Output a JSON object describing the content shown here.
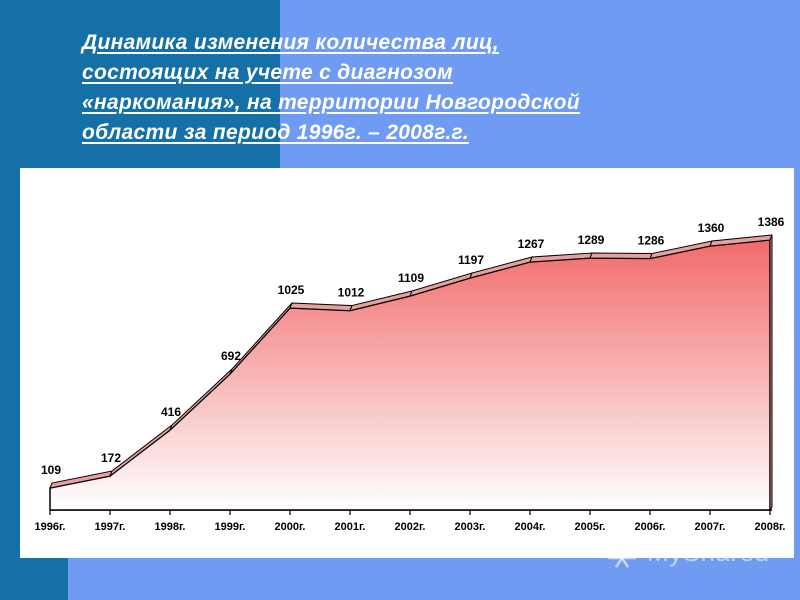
{
  "title_lines": [
    "Динамика изменения количества лиц,",
    "состоящих на учете с диагнозом",
    "«наркомания», на территории Новгородской",
    "области за период 1996г. – 2008г.г."
  ],
  "watermark": "MyShared",
  "colors": {
    "background": "#6f9cf2",
    "band": "#1470a6",
    "area_top": "#f26a6a",
    "area_bottom": "#ffffff",
    "ridge": "#e7a0a0"
  },
  "chart_data": {
    "type": "area",
    "categories": [
      "1996г.",
      "1997г.",
      "1998г.",
      "1999г.",
      "2000г.",
      "2001г.",
      "2002г.",
      "2003г.",
      "2004г.",
      "2005г.",
      "2006г.",
      "2007г.",
      "2008г."
    ],
    "values": [
      109,
      172,
      416,
      692,
      1025,
      1012,
      1109,
      1197,
      1267,
      1289,
      1286,
      1360,
      1386
    ],
    "value_labels": [
      "109",
      "172",
      "416",
      "692",
      "1025",
      "1012",
      "1109",
      "1197",
      "1267",
      "1289",
      "1286",
      "1360",
      "1386"
    ],
    "ylim": [
      0,
      1386
    ],
    "grid": false,
    "legend": false
  }
}
